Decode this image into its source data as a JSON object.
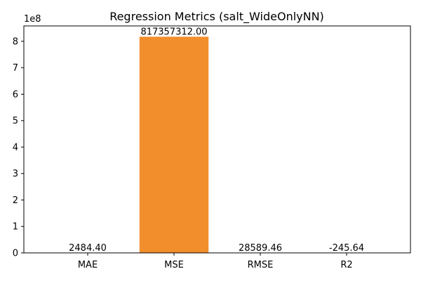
{
  "chart_data": {
    "type": "bar",
    "title": "Regression Metrics (salt_WideOnlyNN)",
    "xlabel": "",
    "ylabel": "",
    "y_scale_label": "1e8",
    "y_scale": 100000000,
    "ylim": [
      0,
      858225177.6
    ],
    "yticks": [
      0,
      1,
      2,
      3,
      4,
      5,
      6,
      7,
      8
    ],
    "grid": false,
    "categories": [
      "MAE",
      "MSE",
      "RMSE",
      "R2"
    ],
    "values": [
      2484.4,
      817357312.0,
      28589.46,
      -245.64
    ],
    "data_labels": [
      "2484.40",
      "817357312.00",
      "28589.46",
      "-245.64"
    ],
    "colors": [
      "#f28e2b",
      "#f28e2b",
      "#f28e2b",
      "#f28e2b"
    ]
  }
}
